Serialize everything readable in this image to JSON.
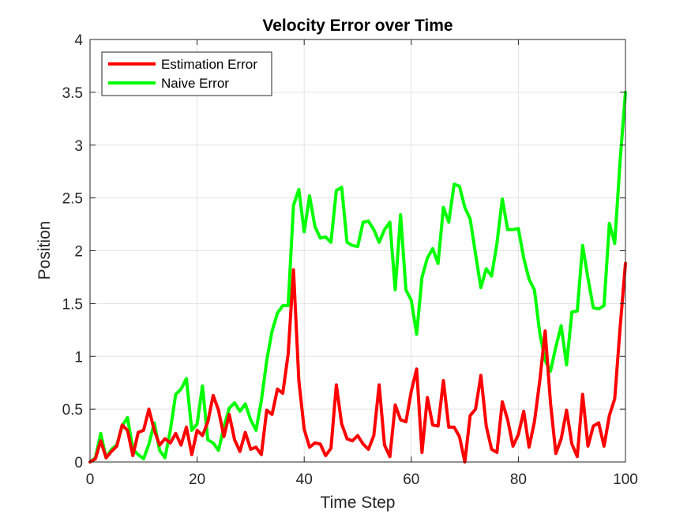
{
  "chart_data": {
    "type": "line",
    "title": "Velocity Error over Time",
    "xlabel": "Time Step",
    "ylabel": "Position",
    "xlim": [
      0,
      100
    ],
    "ylim": [
      0,
      4
    ],
    "x_ticks": [
      0,
      20,
      40,
      60,
      80,
      100
    ],
    "x_tick_labels": [
      "0",
      "20",
      "40",
      "60",
      "80",
      "100"
    ],
    "y_ticks": [
      0,
      0.5,
      1,
      1.5,
      2,
      2.5,
      3,
      3.5,
      4
    ],
    "y_tick_labels": [
      "0",
      "0.5",
      "1",
      "1.5",
      "2",
      "2.5",
      "3",
      "3.5",
      "4"
    ],
    "grid": true,
    "legend_position": "top-left",
    "x": [
      0,
      1,
      2,
      3,
      4,
      5,
      6,
      7,
      8,
      9,
      10,
      11,
      12,
      13,
      14,
      15,
      16,
      17,
      18,
      19,
      20,
      21,
      22,
      23,
      24,
      25,
      26,
      27,
      28,
      29,
      30,
      31,
      32,
      33,
      34,
      35,
      36,
      37,
      38,
      39,
      40,
      41,
      42,
      43,
      44,
      45,
      46,
      47,
      48,
      49,
      50,
      51,
      52,
      53,
      54,
      55,
      56,
      57,
      58,
      59,
      60,
      61,
      62,
      63,
      64,
      65,
      66,
      67,
      68,
      69,
      70,
      71,
      72,
      73,
      74,
      75,
      76,
      77,
      78,
      79,
      80,
      81,
      82,
      83,
      84,
      85,
      86,
      87,
      88,
      89,
      90,
      91,
      92,
      93,
      94,
      95,
      96,
      97,
      98,
      99,
      100
    ],
    "series": [
      {
        "name": "Estimation Error",
        "color": "#ff0000",
        "values": [
          0.0,
          0.03,
          0.2,
          0.04,
          0.1,
          0.15,
          0.35,
          0.3,
          0.06,
          0.28,
          0.3,
          0.5,
          0.3,
          0.16,
          0.22,
          0.18,
          0.27,
          0.16,
          0.33,
          0.07,
          0.3,
          0.25,
          0.38,
          0.63,
          0.49,
          0.24,
          0.45,
          0.21,
          0.1,
          0.28,
          0.12,
          0.14,
          0.07,
          0.49,
          0.45,
          0.69,
          0.65,
          1.02,
          1.82,
          0.77,
          0.31,
          0.14,
          0.18,
          0.17,
          0.06,
          0.13,
          0.73,
          0.36,
          0.22,
          0.2,
          0.25,
          0.17,
          0.12,
          0.25,
          0.73,
          0.16,
          0.05,
          0.54,
          0.4,
          0.38,
          0.67,
          0.88,
          0.09,
          0.61,
          0.35,
          0.34,
          0.77,
          0.33,
          0.33,
          0.24,
          0.0,
          0.44,
          0.5,
          0.82,
          0.34,
          0.12,
          0.09,
          0.57,
          0.4,
          0.15,
          0.26,
          0.48,
          0.14,
          0.38,
          0.77,
          1.24,
          0.56,
          0.08,
          0.22,
          0.49,
          0.17,
          0.05,
          0.64,
          0.15,
          0.34,
          0.37,
          0.15,
          0.44,
          0.6,
          1.27,
          1.88
        ]
      },
      {
        "name": "Naive Error",
        "color": "#00ff00",
        "values": [
          0.0,
          0.04,
          0.27,
          0.04,
          0.12,
          0.16,
          0.34,
          0.42,
          0.12,
          0.07,
          0.03,
          0.17,
          0.37,
          0.11,
          0.04,
          0.3,
          0.64,
          0.69,
          0.79,
          0.3,
          0.36,
          0.72,
          0.21,
          0.18,
          0.11,
          0.33,
          0.51,
          0.56,
          0.48,
          0.55,
          0.4,
          0.3,
          0.58,
          0.96,
          1.24,
          1.41,
          1.48,
          1.48,
          2.43,
          2.58,
          2.18,
          2.52,
          2.23,
          2.12,
          2.13,
          2.08,
          2.57,
          2.6,
          2.08,
          2.05,
          2.04,
          2.27,
          2.28,
          2.2,
          2.08,
          2.2,
          2.27,
          1.63,
          2.34,
          1.63,
          1.53,
          1.21,
          1.75,
          1.93,
          2.02,
          1.88,
          2.41,
          2.27,
          2.63,
          2.61,
          2.41,
          2.3,
          1.97,
          1.65,
          1.83,
          1.76,
          2.07,
          2.49,
          2.2,
          2.2,
          2.21,
          1.93,
          1.73,
          1.63,
          1.22,
          0.96,
          0.86,
          1.09,
          1.29,
          0.92,
          1.42,
          1.43,
          2.05,
          1.74,
          1.46,
          1.45,
          1.48,
          2.26,
          2.07,
          2.85,
          3.5
        ]
      }
    ]
  }
}
